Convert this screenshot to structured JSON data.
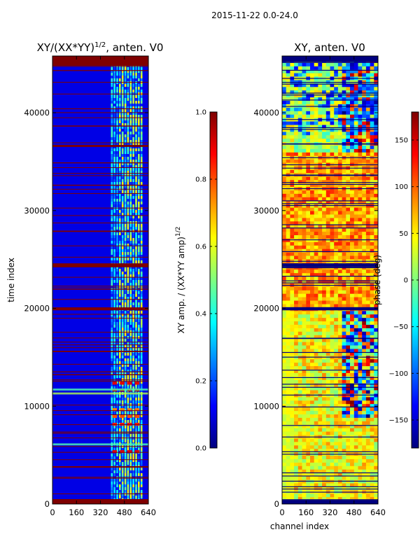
{
  "figure": {
    "suptitle": "2015-11-22 0.0-24.0"
  },
  "colors": {
    "jet": [
      "#00007f",
      "#0000ff",
      "#007fff",
      "#00ffff",
      "#7fff7f",
      "#ffff00",
      "#ff7f00",
      "#ff0000",
      "#7f0000"
    ],
    "background": "#ffffff"
  },
  "chart_data": [
    {
      "type": "heatmap",
      "title": "XY/(XX*YY)^{1/2}, anten. V0",
      "title_main": "XY/(XX*YY)",
      "title_sup": "1/2",
      "title_suffix": ", anten. V0",
      "xlabel": "",
      "ylabel": "time index",
      "xlim": [
        0,
        640
      ],
      "ylim": [
        0,
        45800
      ],
      "xticks": [
        0,
        160,
        320,
        480,
        640
      ],
      "xtick_labels": [
        "0",
        "160",
        "320",
        "480",
        "640"
      ],
      "yticks": [
        0,
        10000,
        20000,
        30000,
        40000
      ],
      "ytick_labels": [
        "0",
        "10000",
        "20000",
        "30000",
        "40000"
      ],
      "colorbar": {
        "label": "XY amp. / (XX*YY amp)^{1/2}",
        "label_main": "XY amp. / (XX*YY amp)",
        "label_sup": "1/2",
        "range": [
          0.0,
          1.0
        ],
        "ticks": [
          0.0,
          0.2,
          0.4,
          0.6,
          0.8,
          1.0
        ],
        "tick_labels": [
          "0.0",
          "0.2",
          "0.4",
          "0.6",
          "0.8",
          "1.0"
        ]
      }
    },
    {
      "type": "heatmap",
      "title": "XY, anten. V0",
      "xlabel": "channel index",
      "ylabel": "",
      "xlim": [
        0,
        640
      ],
      "ylim": [
        0,
        45800
      ],
      "xticks": [
        0,
        160,
        320,
        480,
        640
      ],
      "xtick_labels": [
        "0",
        "160",
        "320",
        "480",
        "640"
      ],
      "yticks": [
        0,
        10000,
        20000,
        30000,
        40000
      ],
      "ytick_labels": [
        "0",
        "10000",
        "20000",
        "30000",
        "40000"
      ],
      "colorbar": {
        "label": "phase (deg)",
        "range": [
          -180,
          180
        ],
        "ticks": [
          -150,
          -100,
          -50,
          0,
          50,
          100,
          150
        ],
        "tick_labels": [
          "−150",
          "−100",
          "−50",
          "0",
          "50",
          "100",
          "150"
        ]
      }
    }
  ]
}
